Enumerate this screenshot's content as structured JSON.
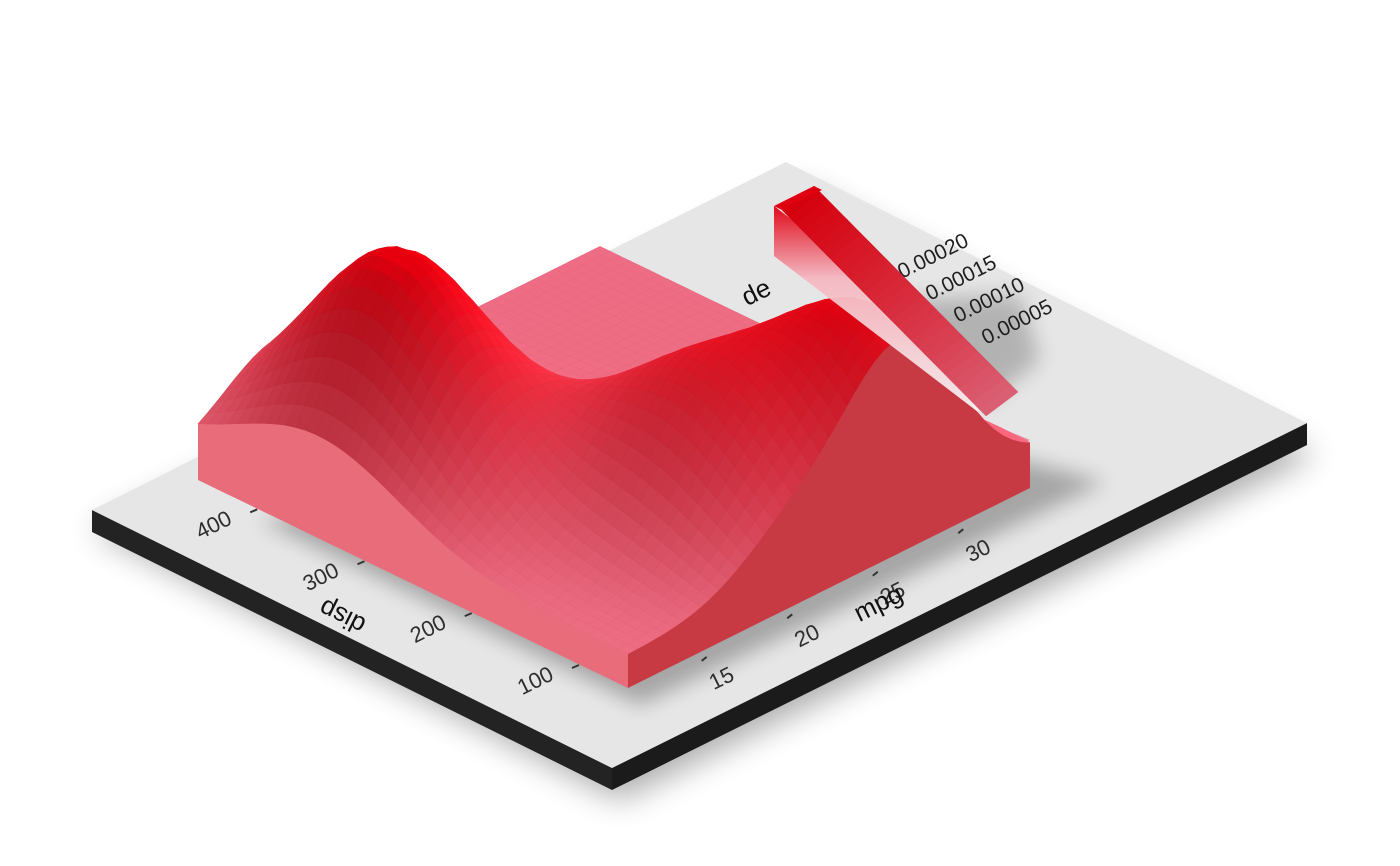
{
  "chart_data": {
    "type": "heatmap",
    "subtype": "3d-density-surface",
    "x_variable": "mpg",
    "y_variable": "disp",
    "z_variable": "density",
    "xlabel": "mpg",
    "ylabel": "disp",
    "legend_title": "density",
    "legend_title_visible": "de",
    "x_ticks": [
      "15",
      "20",
      "25",
      "30"
    ],
    "y_ticks": [
      "100",
      "200",
      "300",
      "400"
    ],
    "xlim": [
      10.4,
      33.9
    ],
    "ylim": [
      71.1,
      472
    ],
    "legend_ticks": [
      "0.00005",
      "0.00010",
      "0.00015",
      "0.00020"
    ],
    "legend_range": [
      0,
      0.00025
    ],
    "density_peaks": [
      {
        "mpg": 15.2,
        "disp": 360,
        "density": 0.00025
      },
      {
        "mpg": 20.5,
        "disp": 170,
        "density": 0.00017
      },
      {
        "mpg": 26.5,
        "disp": 100,
        "density": 0.00022
      }
    ],
    "colors": {
      "high": "#e8000f",
      "low": "#f08aa2",
      "floor": "#e6e6e6",
      "base": "#222222",
      "panel": "#e38da3"
    }
  }
}
